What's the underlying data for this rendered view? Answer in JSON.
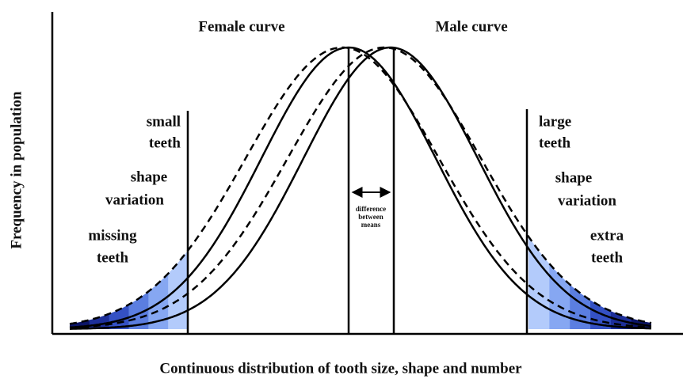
{
  "title_female": "Female curve",
  "title_male": "Male curve",
  "y_axis_label": "Frequency in population",
  "x_axis_label": "Continuous distribution of tooth size, shape and number",
  "left_labels": [
    [
      "small",
      "teeth"
    ],
    [
      "shape",
      "variation"
    ],
    [
      "missing",
      "teeth"
    ]
  ],
  "right_labels": [
    [
      "large",
      "teeth"
    ],
    [
      "shape",
      "variation"
    ],
    [
      "extra",
      "teeth"
    ]
  ],
  "difference_label": [
    "difference",
    "between",
    "means"
  ]
}
